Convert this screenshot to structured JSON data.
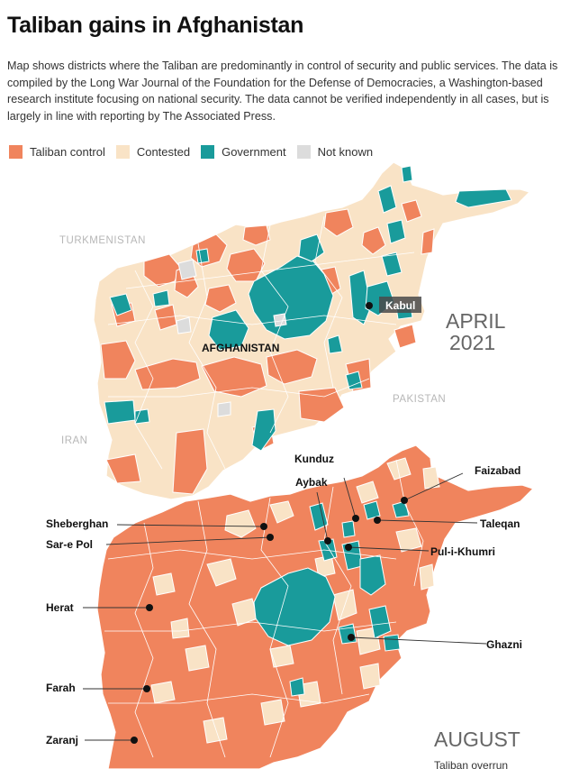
{
  "header": {
    "title": "Taliban gains in Afghanistan",
    "description": "Map shows districts where the Taliban are predominantly in control of security and public services. The data is compiled by the Long War Journal of the Foundation for the Defense of Democracies, a Washington-based research institute focusing on national security. The data cannot be verified independently in all cases, but is largely in line with reporting by The Associated Press."
  },
  "legend": [
    {
      "label": "Taliban control",
      "color": "#f0845d"
    },
    {
      "label": "Contested",
      "color": "#f9e3c6"
    },
    {
      "label": "Government",
      "color": "#199b9b"
    },
    {
      "label": "Not known",
      "color": "#dcdcdc"
    }
  ],
  "map_april": {
    "period": "APRIL",
    "year": "2021",
    "country": "AFGHANISTAN",
    "neighbors": [
      "TURKMENISTAN",
      "PAKISTAN",
      "IRAN"
    ],
    "city": "Kabul"
  },
  "map_august": {
    "period": "AUGUST",
    "subtitle": "Taliban overrun",
    "cities": [
      "Kunduz",
      "Faizabad",
      "Aybak",
      "Sheberghan",
      "Taleqan",
      "Sar-e Pol",
      "Pul-i-Khumri",
      "Herat",
      "Ghazni",
      "Farah",
      "Zaranj"
    ]
  }
}
